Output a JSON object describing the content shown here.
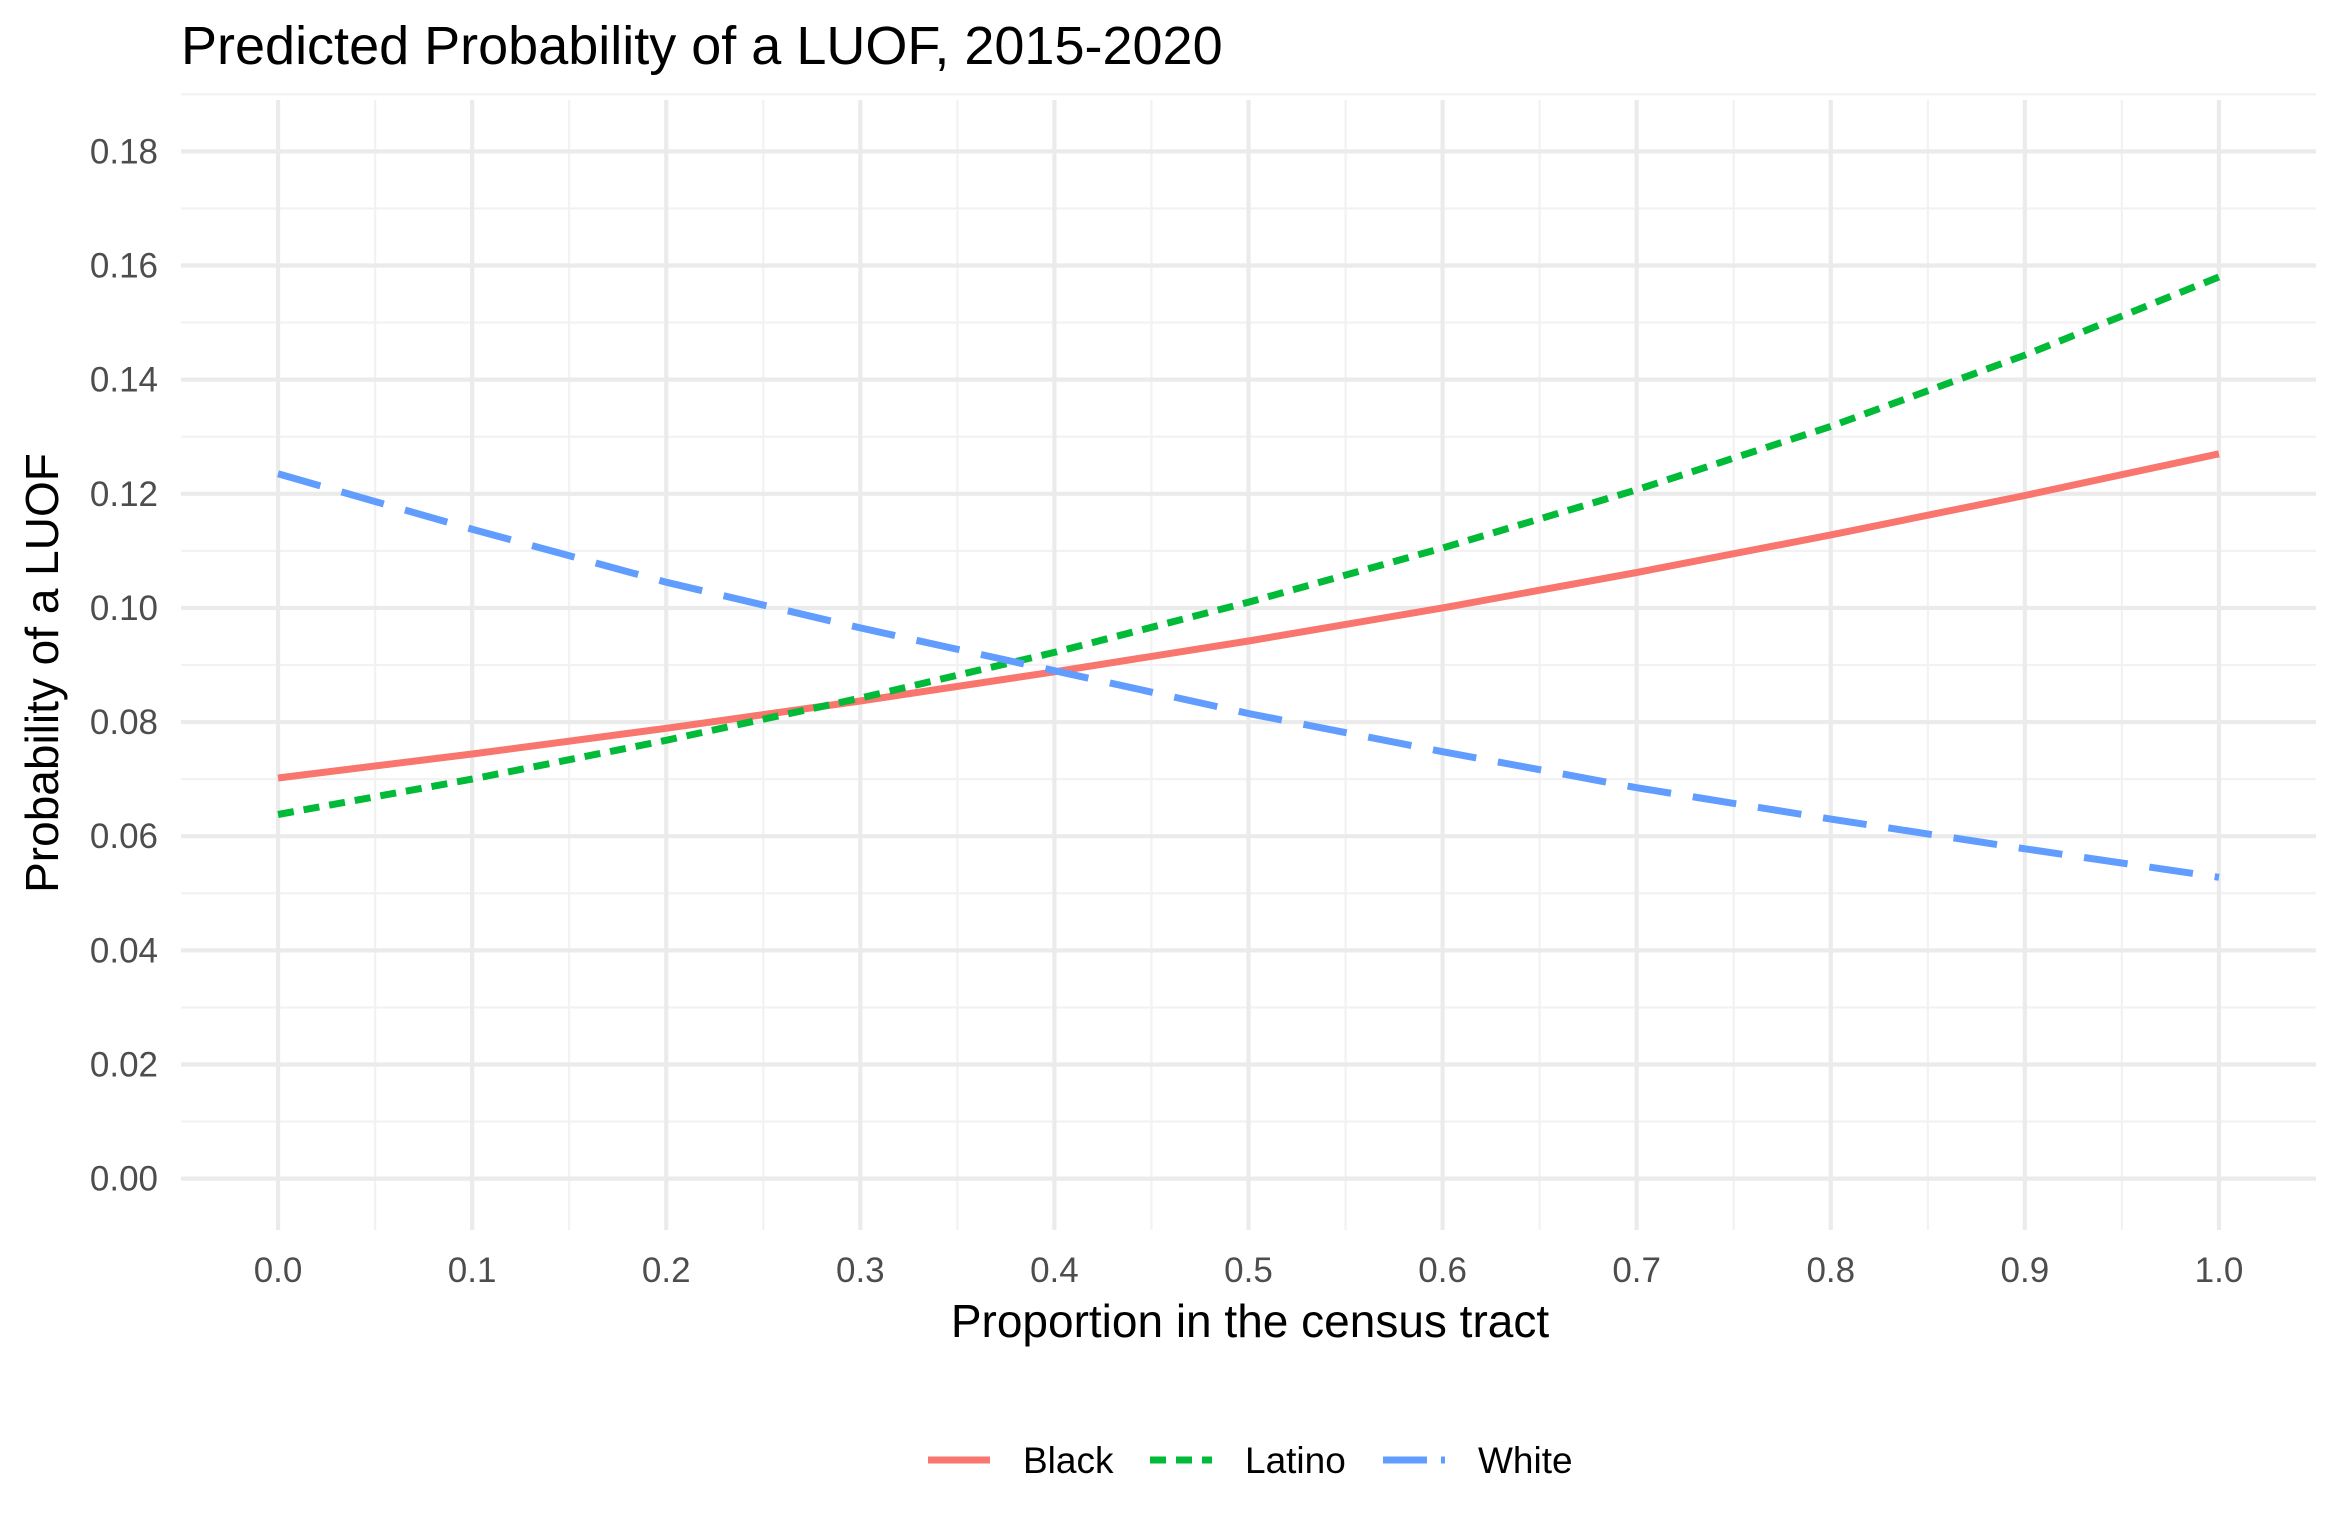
{
  "chart_data": {
    "type": "line",
    "title": "Predicted Probability of a LUOF, 2015-2020",
    "xlabel": "Proportion in the census tract",
    "ylabel": "Probability of a LUOF",
    "xlim": [
      -0.05,
      1.05
    ],
    "ylim": [
      -0.009,
      0.189
    ],
    "x_ticks": [
      0.0,
      0.1,
      0.2,
      0.3,
      0.4,
      0.5,
      0.6,
      0.7,
      0.8,
      0.9,
      1.0
    ],
    "x_tick_labels": [
      "0.0",
      "0.1",
      "0.2",
      "0.3",
      "0.4",
      "0.5",
      "0.6",
      "0.7",
      "0.8",
      "0.9",
      "1.0"
    ],
    "y_ticks": [
      0.0,
      0.02,
      0.04,
      0.06,
      0.08,
      0.1,
      0.12,
      0.14,
      0.16,
      0.18
    ],
    "y_tick_labels": [
      "0.00",
      "0.02",
      "0.04",
      "0.06",
      "0.08",
      "0.10",
      "0.12",
      "0.14",
      "0.16",
      "0.18"
    ],
    "grid": true,
    "legend_position": "bottom",
    "x": [
      0.0,
      0.1,
      0.2,
      0.3,
      0.4,
      0.5,
      0.6,
      0.7,
      0.8,
      0.9,
      1.0
    ],
    "series": [
      {
        "name": "Black",
        "color": "#F8766D",
        "line_style": "solid",
        "values": [
          0.0702,
          0.0744,
          0.0789,
          0.0837,
          0.0888,
          0.0942,
          0.1,
          0.1062,
          0.1128,
          0.1197,
          0.127
        ]
      },
      {
        "name": "Latino",
        "color": "#00BA38",
        "line_style": "dotted",
        "values": [
          0.0638,
          0.07,
          0.0768,
          0.0842,
          0.0922,
          0.101,
          0.1105,
          0.1207,
          0.1318,
          0.1443,
          0.158
        ]
      },
      {
        "name": "White",
        "color": "#619CFF",
        "line_style": "dashed",
        "values": [
          0.1235,
          0.1138,
          0.1045,
          0.0965,
          0.089,
          0.0815,
          0.0748,
          0.0685,
          0.063,
          0.0578,
          0.0528
        ]
      }
    ]
  }
}
